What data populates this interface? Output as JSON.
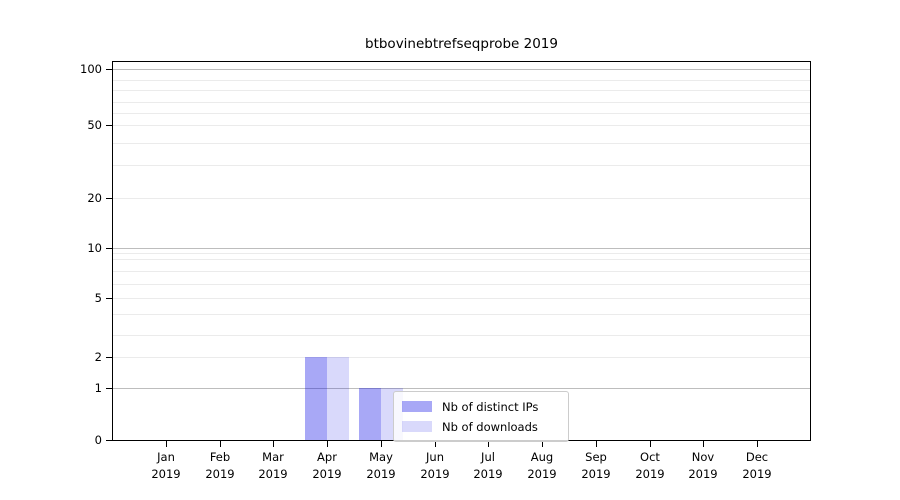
{
  "chart_data": {
    "type": "bar",
    "title": "btbovinebtrefseqprobe 2019",
    "categories": [
      "Jan",
      "Feb",
      "Mar",
      "Apr",
      "May",
      "Jun",
      "Jul",
      "Aug",
      "Sep",
      "Oct",
      "Nov",
      "Dec"
    ],
    "category_year": "2019",
    "series": [
      {
        "name": "Nb of distinct IPs",
        "color": "#0000e6",
        "alpha": 0.34,
        "perceived_color": "#a9a9f6",
        "values": [
          0,
          0,
          0,
          2,
          1,
          0,
          0,
          0,
          0,
          0,
          0,
          0
        ]
      },
      {
        "name": "Nb of downloads",
        "color": "#0000e6",
        "alpha": 0.15,
        "perceived_color": "#dadaf8",
        "values": [
          0,
          0,
          0,
          2,
          1,
          0,
          0,
          0,
          0,
          0,
          0,
          0
        ]
      }
    ],
    "y_ticks": [
      "0",
      "1",
      "2",
      "5",
      "10",
      "20",
      "50",
      "100"
    ],
    "yscale": "symlog",
    "ylim": [
      0,
      110
    ],
    "xlabel": "",
    "ylabel": "",
    "grid": true,
    "legend_position": "lower-center",
    "colors": {
      "axis": "#000000",
      "major_grid": "#bdbdbd",
      "minor_grid": "#ebebeb",
      "legend_border": "#cccccc"
    }
  }
}
